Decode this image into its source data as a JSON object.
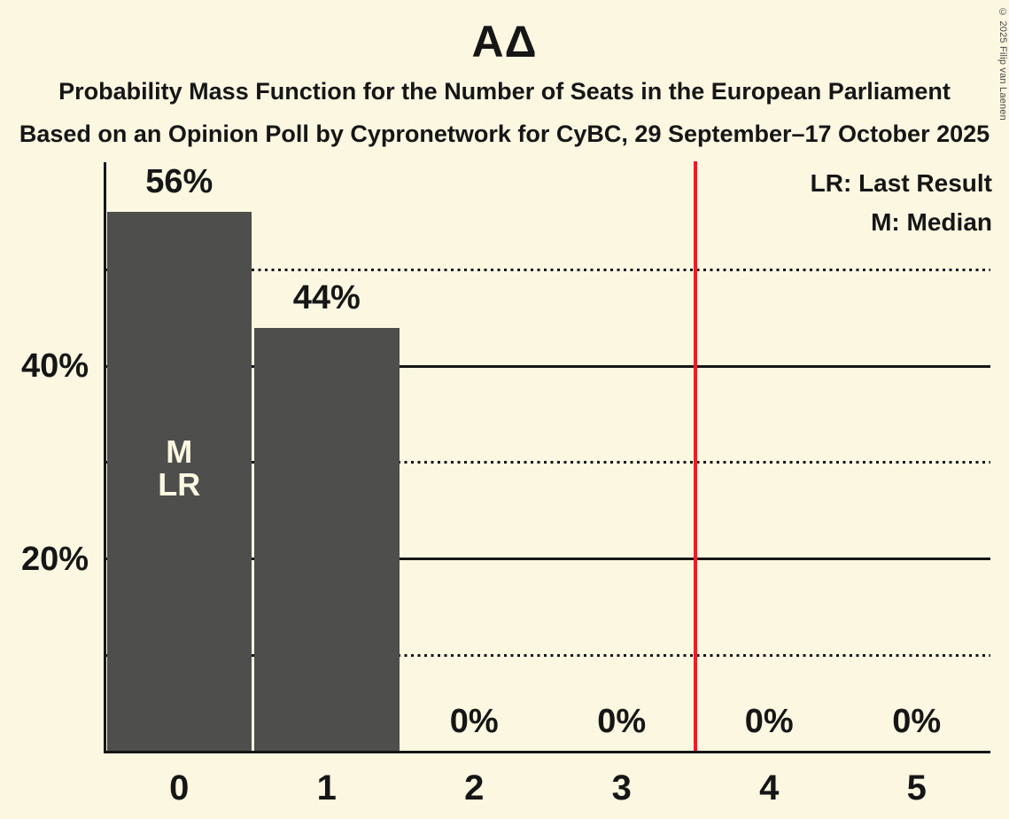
{
  "title": "ΑΔ",
  "subtitle1": "Probability Mass Function for the Number of Seats in the European Parliament",
  "subtitle2": "Based on an Opinion Poll by Cypronetwork for CyBC, 29 September–17 October 2025",
  "legend": {
    "lr": "LR: Last Result",
    "m": "M: Median"
  },
  "copyright": "© 2025 Filip van Laenen",
  "colors": {
    "background": "#FBF7E1",
    "bar": "#4E4E4C",
    "text": "#161616",
    "vertical_line": "#EE1C25",
    "in_bar_text": "#FBF7E1"
  },
  "chart_data": {
    "type": "bar",
    "title": "ΑΔ",
    "categories": [
      "0",
      "1",
      "2",
      "3",
      "4",
      "5"
    ],
    "values": [
      56,
      44,
      0,
      0,
      0,
      0
    ],
    "bar_labels": [
      "56%",
      "44%",
      "0%",
      "0%",
      "0%",
      "0%"
    ],
    "annotations": [
      {
        "category": "0",
        "lines": [
          "M",
          "LR"
        ]
      }
    ],
    "y_ticks": [
      {
        "pct": 40,
        "label": "40%"
      },
      {
        "pct": 20,
        "label": "20%"
      }
    ],
    "gridlines": [
      {
        "pct": 50,
        "style": "dotted"
      },
      {
        "pct": 40,
        "style": "solid"
      },
      {
        "pct": 30,
        "style": "dotted"
      },
      {
        "pct": 20,
        "style": "solid"
      },
      {
        "pct": 10,
        "style": "dotted"
      }
    ],
    "vertical_line_at_x": 3.5,
    "ylim": [
      0,
      61
    ],
    "grid": "horizontal",
    "legend_position": "top-right"
  }
}
